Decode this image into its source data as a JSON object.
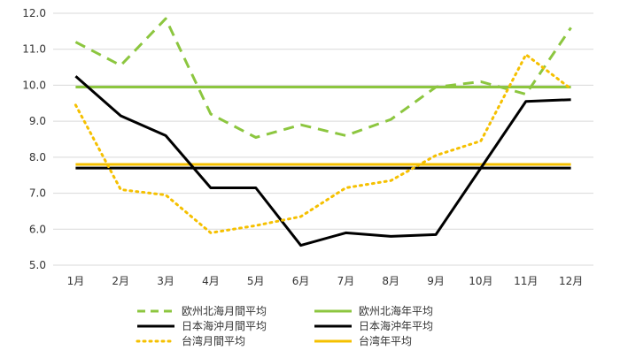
{
  "chart_data": {
    "type": "line",
    "categories": [
      "1月",
      "2月",
      "3月",
      "4月",
      "5月",
      "6月",
      "7月",
      "8月",
      "9月",
      "10月",
      "11月",
      "12月"
    ],
    "y_ticks": [
      "5.0",
      "6.0",
      "7.0",
      "8.0",
      "9.0",
      "10.0",
      "11.0",
      "12.0"
    ],
    "ylim": [
      5.0,
      12.0
    ],
    "grid": true,
    "legend_position": "bottom",
    "series": [
      {
        "name": "欧州北海月間平均",
        "style": "dashed",
        "color": "#8cc63f",
        "values": [
          11.2,
          10.55,
          11.85,
          9.2,
          8.55,
          8.9,
          8.6,
          9.05,
          9.95,
          10.1,
          9.75,
          11.6
        ]
      },
      {
        "name": "欧州北海年平均",
        "style": "solid",
        "color": "#8cc63f",
        "values": [
          9.95,
          9.95,
          9.95,
          9.95,
          9.95,
          9.95,
          9.95,
          9.95,
          9.95,
          9.95,
          9.95,
          9.95
        ]
      },
      {
        "name": "日本海沖月間平均",
        "style": "solid",
        "color": "#000000",
        "values": [
          10.25,
          9.15,
          8.6,
          7.15,
          7.15,
          5.55,
          5.9,
          5.8,
          5.85,
          7.7,
          9.55,
          9.6
        ]
      },
      {
        "name": "日本海沖年平均",
        "style": "solid",
        "color": "#000000",
        "values": [
          7.7,
          7.7,
          7.7,
          7.7,
          7.7,
          7.7,
          7.7,
          7.7,
          7.7,
          7.7,
          7.7,
          7.7
        ]
      },
      {
        "name": "台湾月間平均",
        "style": "dotted",
        "color": "#f5c000",
        "values": [
          9.45,
          7.1,
          6.95,
          5.9,
          6.1,
          6.35,
          7.15,
          7.35,
          8.05,
          8.45,
          10.85,
          9.9
        ]
      },
      {
        "name": "台湾年平均",
        "style": "solid",
        "color": "#f5c000",
        "values": [
          7.8,
          7.8,
          7.8,
          7.8,
          7.8,
          7.8,
          7.8,
          7.8,
          7.8,
          7.8,
          7.8,
          7.8
        ]
      }
    ]
  }
}
